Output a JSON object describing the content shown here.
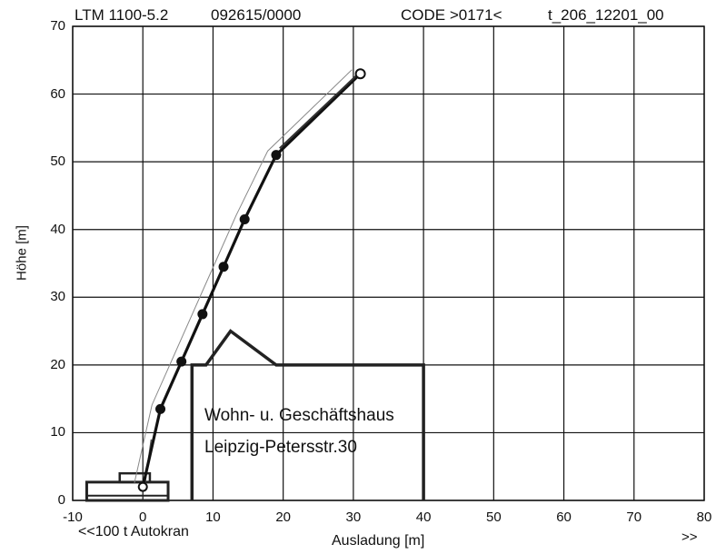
{
  "header": {
    "model": "LTM 1100-5.2",
    "serial": "092615/0000",
    "code": "CODE >0171<",
    "ref": "t_206_12201_00"
  },
  "chart_data": {
    "type": "diagram",
    "xlabel": "Ausladung [m]",
    "ylabel": "Höhe [m]",
    "xlim": [
      -10,
      80
    ],
    "ylim": [
      0,
      70
    ],
    "xticks": [
      -10,
      0,
      10,
      20,
      30,
      40,
      50,
      60,
      70,
      80
    ],
    "yticks": [
      0,
      10,
      20,
      30,
      40,
      50,
      60,
      70
    ],
    "grid": true,
    "boom": {
      "joints": [
        [
          0,
          2
        ],
        [
          2.5,
          13.5
        ],
        [
          5.5,
          20.5
        ],
        [
          8.5,
          27.5
        ],
        [
          11.5,
          34.5
        ],
        [
          14.5,
          41.5
        ],
        [
          19,
          51
        ],
        [
          31,
          63
        ]
      ],
      "tip": [
        31,
        63
      ]
    },
    "building": {
      "outline": [
        [
          7,
          0
        ],
        [
          7,
          20
        ],
        [
          9,
          20
        ],
        [
          12.5,
          25
        ],
        [
          19,
          20
        ],
        [
          40,
          20
        ],
        [
          40,
          0
        ]
      ],
      "label_line1": "Wohn- u. Geschäftshaus",
      "label_line2": "Leipzig-Petersstr.30"
    }
  },
  "footer": {
    "crane_link": "<<100 t Autokran",
    "next_link": ">>"
  }
}
